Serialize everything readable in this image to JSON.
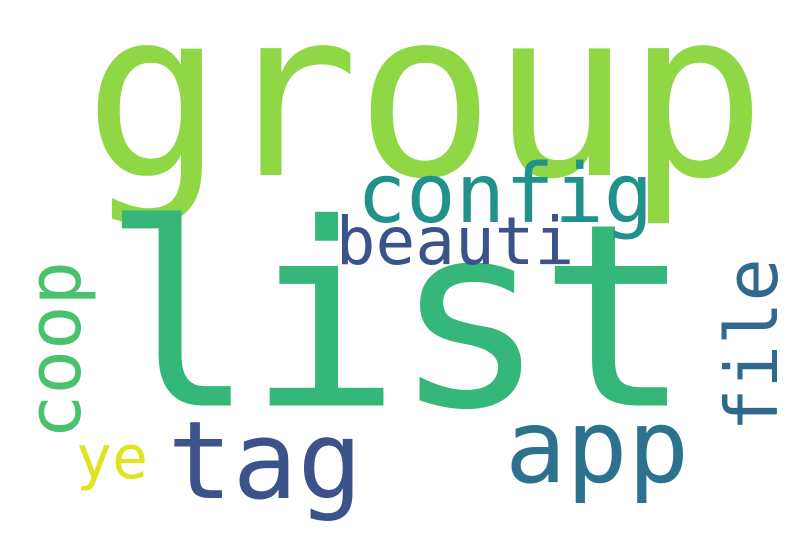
{
  "words": {
    "group": {
      "text": "group",
      "color": "#8fd744"
    },
    "list": {
      "text": "list",
      "color": "#35b779"
    },
    "config": {
      "text": "config",
      "color": "#21918c"
    },
    "beauti": {
      "text": "beauti",
      "color": "#3b528b"
    },
    "coop": {
      "text": "coop",
      "color": "#4ac16d"
    },
    "file": {
      "text": "file",
      "color": "#31688e"
    },
    "tag": {
      "text": "tag",
      "color": "#3b528b"
    },
    "app": {
      "text": "app",
      "color": "#2c728e"
    },
    "ye": {
      "text": "ye",
      "color": "#e0e320"
    }
  }
}
